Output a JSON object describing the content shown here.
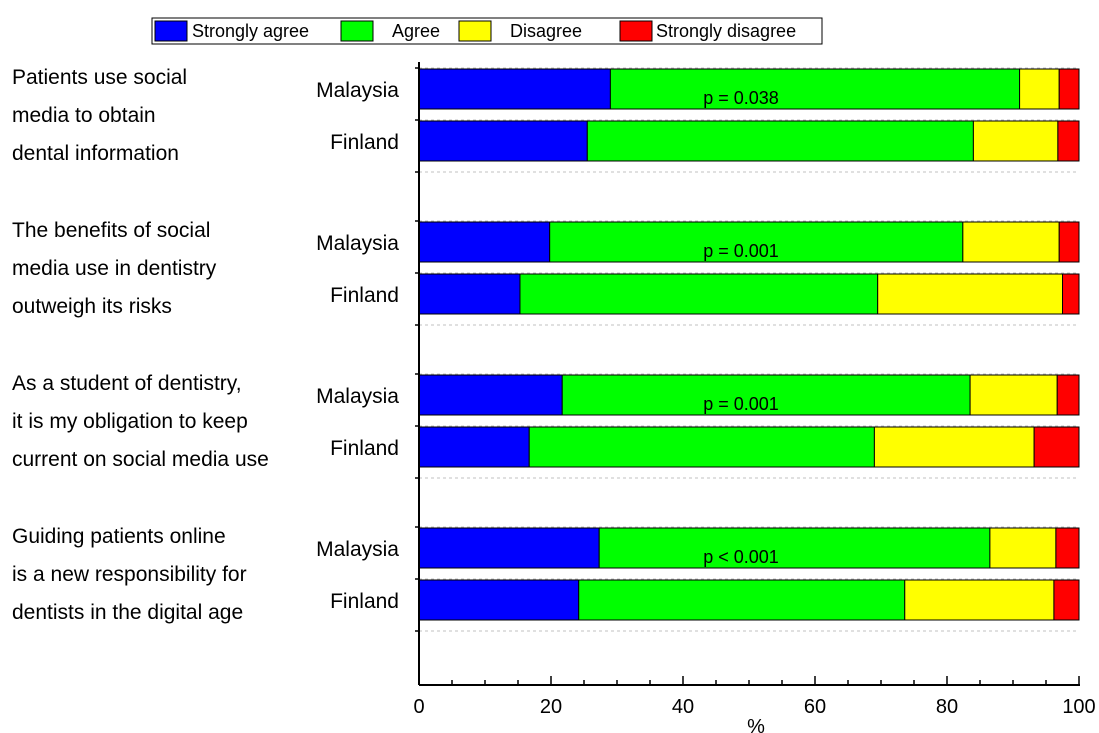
{
  "chart_data": {
    "type": "bar",
    "stacked": true,
    "orientation": "horizontal",
    "legend": {
      "placement": "top",
      "items": [
        "Strongly agree",
        "Agree",
        "Disagree",
        "Strongly disagree"
      ],
      "colors": [
        "#0000ff",
        "#00ff00",
        "#ffff00",
        "#ff0000"
      ]
    },
    "xlabel": "%",
    "xlim": [
      0,
      100
    ],
    "xticks": [
      "0",
      "20",
      "40",
      "60",
      "80",
      "100"
    ],
    "grid": "dashed horizontal separators",
    "groups": [
      {
        "statement": [
          "Patients use social",
          "media to obtain",
          "dental information"
        ],
        "p_value": "p = 0.038",
        "bars": [
          {
            "country": "Malaysia",
            "values": [
              29,
              62,
              6,
              3
            ]
          },
          {
            "country": "Finland",
            "values": [
              25.5,
              58.5,
              12.8,
              3.2
            ]
          }
        ]
      },
      {
        "statement": [
          "The benefits of social",
          "media use in dentistry",
          " outweigh its risks"
        ],
        "p_value": "p = 0.001",
        "bars": [
          {
            "country": "Malaysia",
            "values": [
              19.8,
              62.6,
              14.6,
              3
            ]
          },
          {
            "country": "Finland",
            "values": [
              15.3,
              54.2,
              28,
              2.5
            ]
          }
        ]
      },
      {
        "statement": [
          "As a student of dentistry,",
          "it is my obligation to keep",
          "current on social media use"
        ],
        "p_value": "p = 0.001",
        "bars": [
          {
            "country": "Malaysia",
            "values": [
              21.7,
              61.8,
              13.2,
              3.3
            ]
          },
          {
            "country": "Finland",
            "values": [
              16.7,
              52.3,
              24.2,
              6.8
            ]
          }
        ]
      },
      {
        "statement": [
          "Guiding patients online",
          "is a new responsibility for",
          "dentists in the digital age"
        ],
        "p_value": "p < 0.001",
        "bars": [
          {
            "country": "Malaysia",
            "values": [
              27.3,
              59.2,
              10,
              3.5
            ]
          },
          {
            "country": "Finland",
            "values": [
              24.2,
              49.4,
              22.6,
              3.8
            ]
          }
        ]
      }
    ]
  }
}
